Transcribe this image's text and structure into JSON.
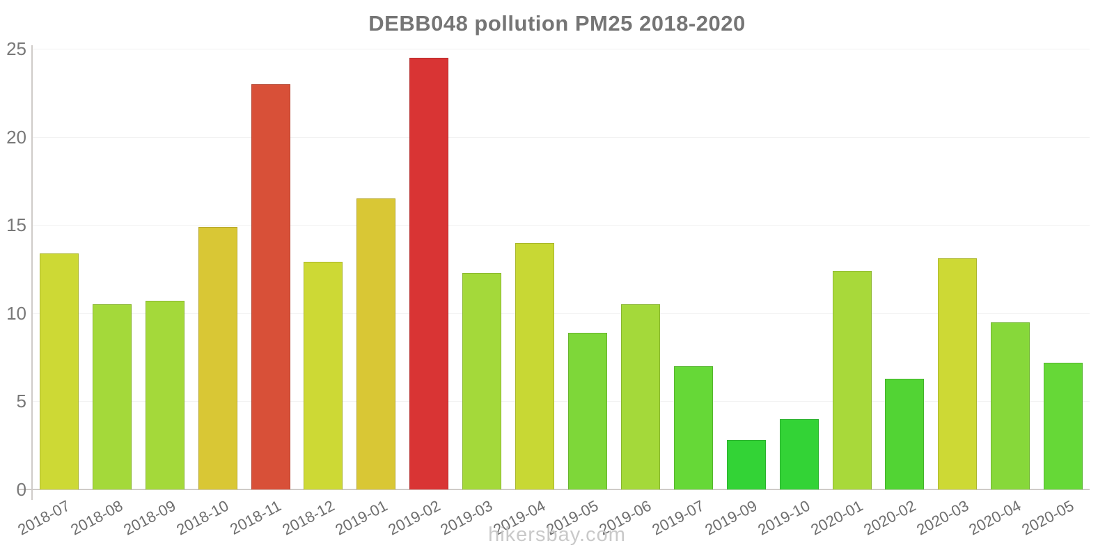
{
  "title": "DEBB048 pollution PM25 2018-2020",
  "footer": "hikersbay.com",
  "axis": {
    "line_color": "#cfcbc8",
    "grid_color": "#f2f2f2",
    "tick_label_color": "#787878",
    "x_label_color": "#6e6e6e"
  },
  "chart_data": {
    "type": "bar",
    "title": "DEBB048 pollution PM25 2018-2020",
    "xlabel": "",
    "ylabel": "",
    "ylim": [
      0,
      25
    ],
    "yticks": [
      0,
      5,
      10,
      15,
      20,
      25
    ],
    "grid": true,
    "legend": false,
    "categories": [
      "2018-07",
      "2018-08",
      "2018-09",
      "2018-10",
      "2018-11",
      "2018-12",
      "2019-01",
      "2019-02",
      "2019-03",
      "2019-04",
      "2019-05",
      "2019-06",
      "2019-07",
      "2019-09",
      "2019-10",
      "2020-01",
      "2020-02",
      "2020-03",
      "2020-04",
      "2020-05"
    ],
    "values": [
      13.4,
      10.5,
      10.7,
      14.9,
      23.0,
      12.9,
      16.5,
      24.5,
      12.3,
      14.0,
      8.9,
      10.5,
      7.0,
      2.8,
      4.0,
      12.4,
      6.3,
      13.1,
      9.5,
      7.2
    ],
    "bar_colors": [
      "#cdd935",
      "#a4d93a",
      "#a4d93a",
      "#d9c735",
      "#d85038",
      "#cdd935",
      "#d9c735",
      "#d93434",
      "#a4d93a",
      "#c8d834",
      "#7ed739",
      "#a4d93a",
      "#66d837",
      "#33d336",
      "#33d336",
      "#a8d93a",
      "#52d434",
      "#cdd935",
      "#87d83a",
      "#66d837"
    ]
  }
}
